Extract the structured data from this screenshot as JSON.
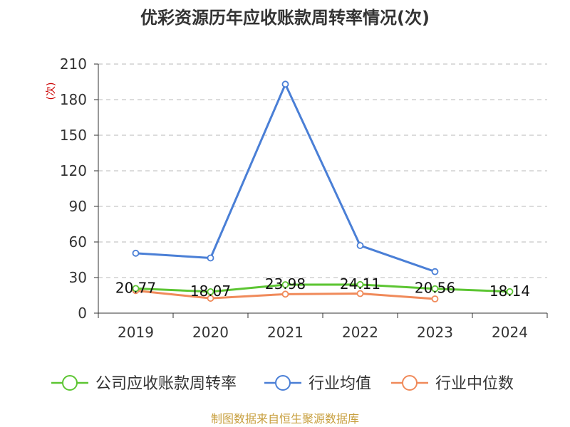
{
  "chart_data": {
    "type": "line",
    "title": "优彩资源历年应收账款周转率情况(次)",
    "ylabel": "(次)",
    "categories": [
      "2019",
      "2020",
      "2021",
      "2022",
      "2023",
      "2024"
    ],
    "ylim": [
      0,
      210
    ],
    "yticks": [
      0,
      30,
      60,
      90,
      120,
      150,
      180,
      210
    ],
    "grid": true,
    "legend_position": "bottom",
    "series": [
      {
        "name": "公司应收账款周转率",
        "color": "#5cc532",
        "values": [
          20.77,
          18.07,
          23.98,
          24.11,
          20.56,
          18.14
        ],
        "labels": [
          "20.77",
          "18.07",
          "23.98",
          "24.11",
          "20.56",
          "18.14"
        ]
      },
      {
        "name": "行业均值",
        "color": "#4a7fd6",
        "values": [
          50.5,
          46.5,
          193,
          57,
          35,
          null
        ]
      },
      {
        "name": "行业中位数",
        "color": "#f08a5a",
        "values": [
          19,
          12.5,
          16,
          16.5,
          12,
          null
        ]
      }
    ],
    "source": "制图数据来自恒生聚源数据库"
  }
}
